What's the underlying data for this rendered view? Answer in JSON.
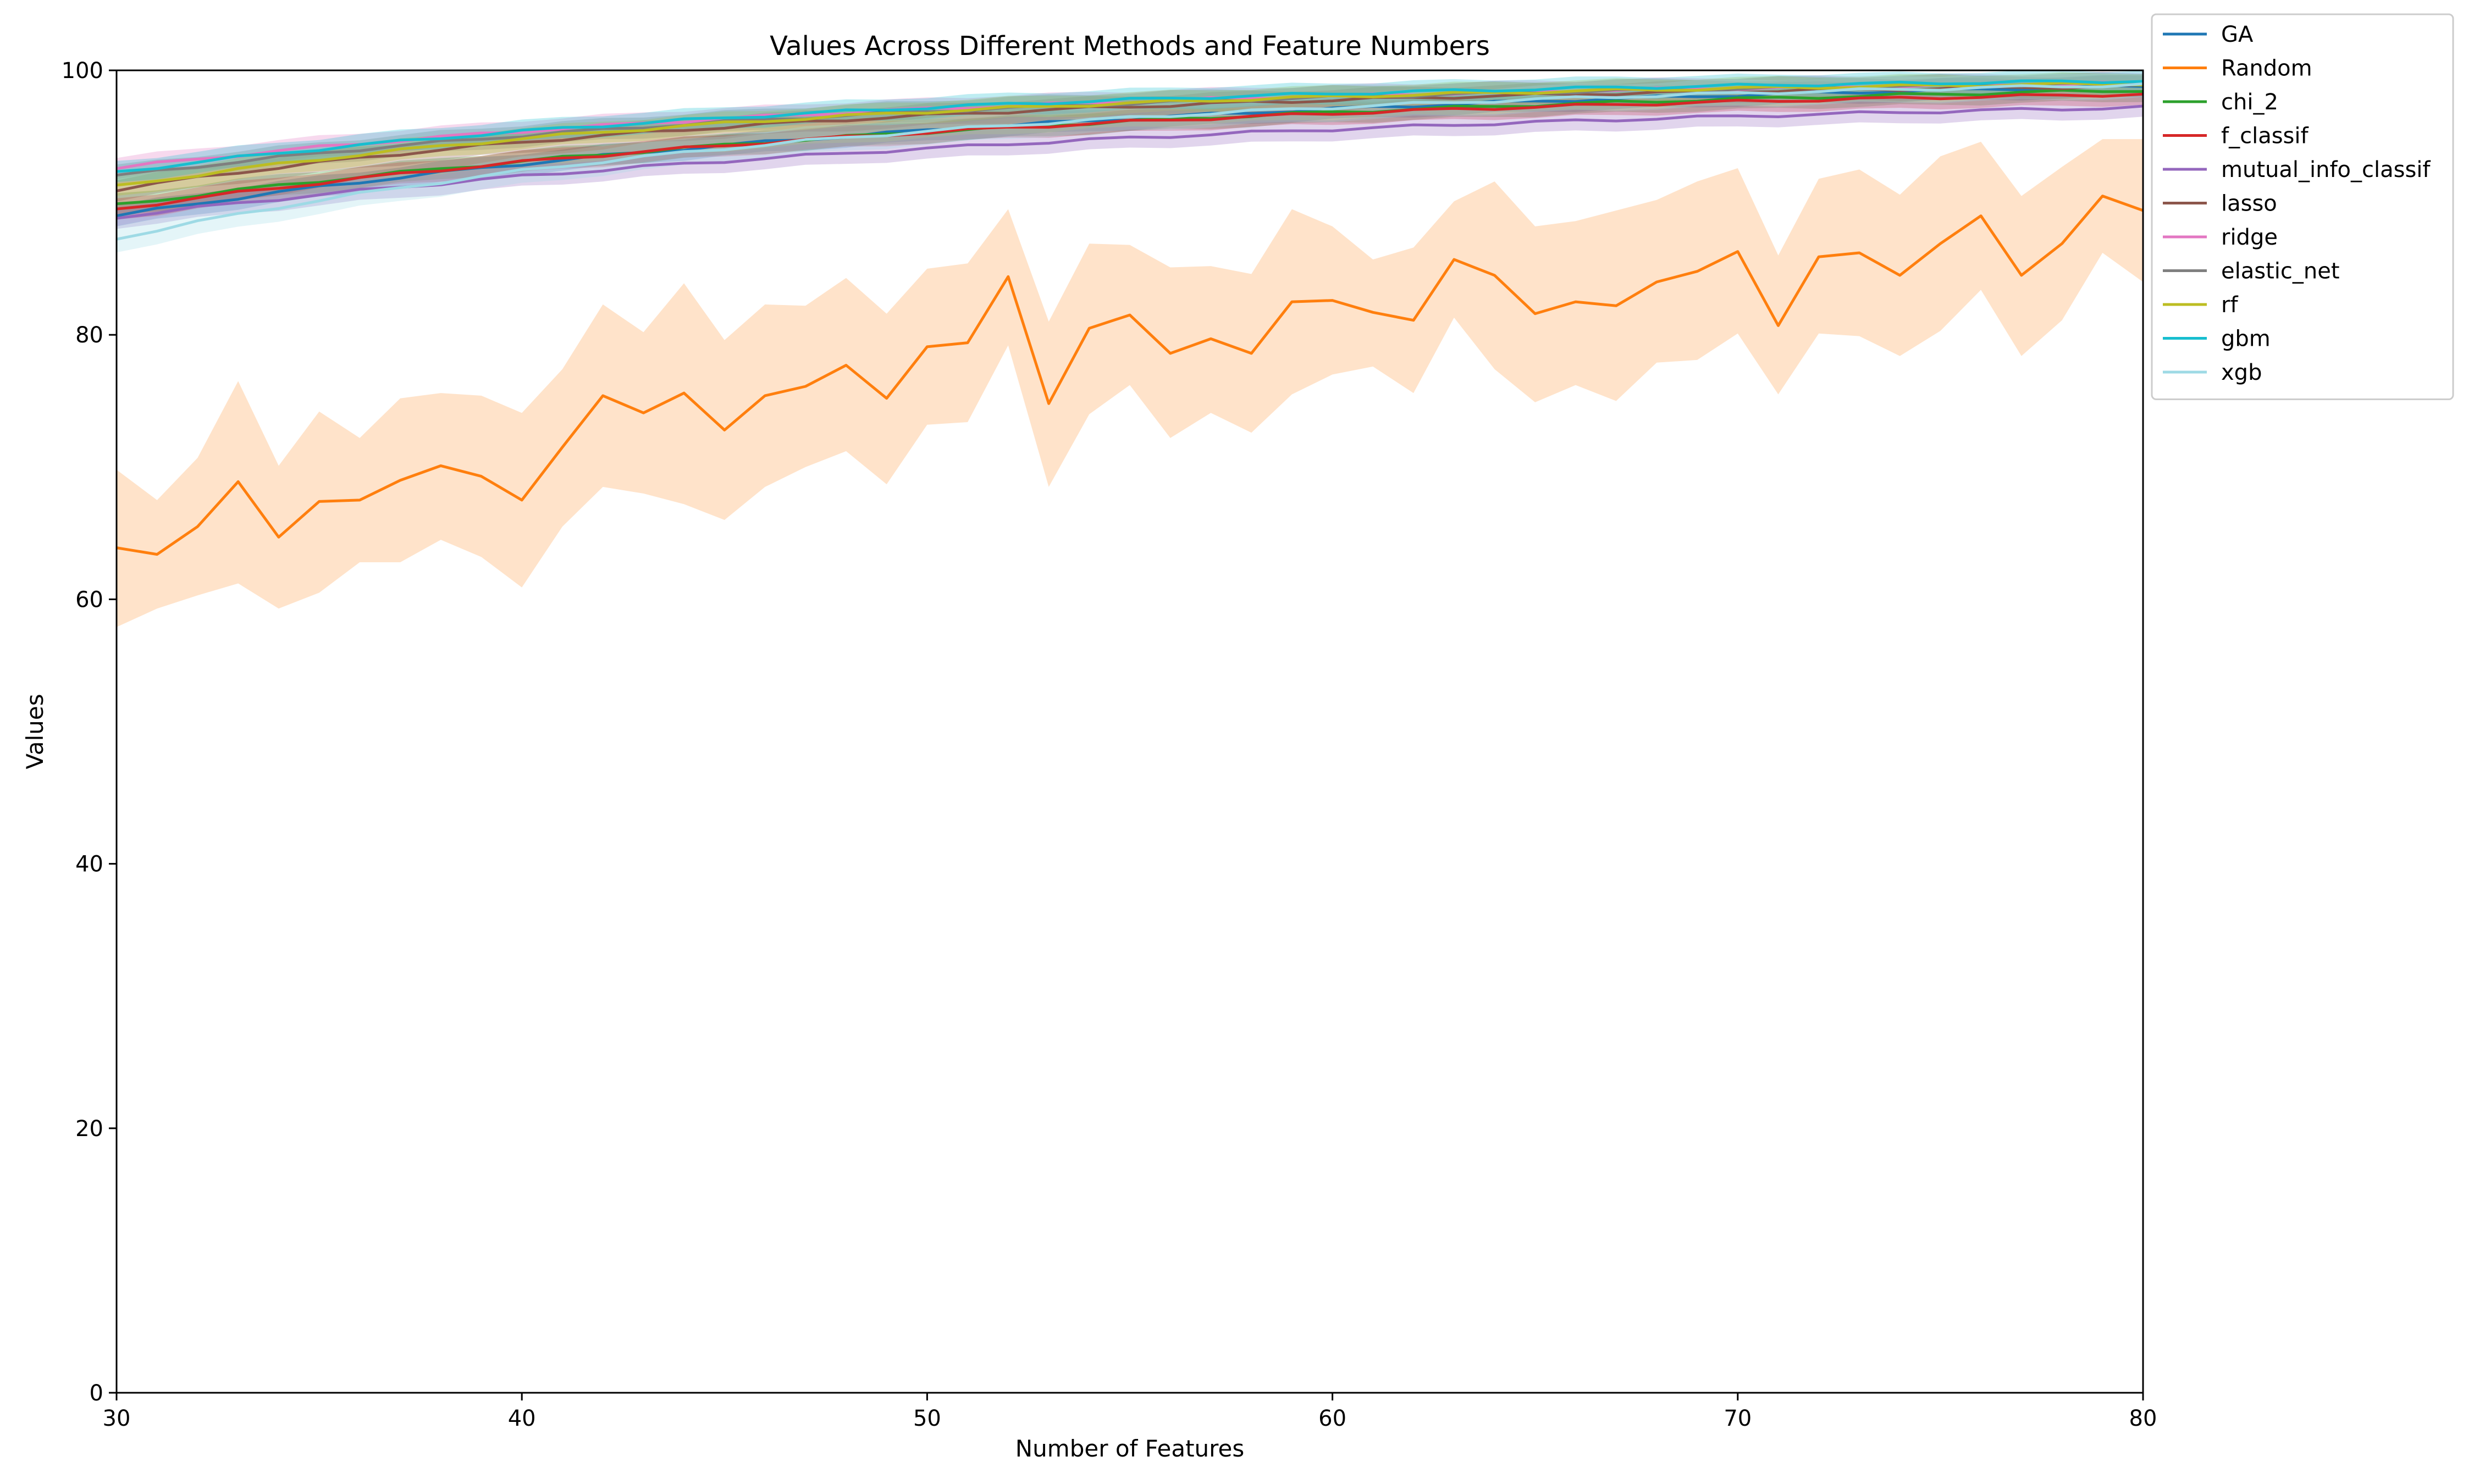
{
  "chart_data": {
    "type": "line",
    "title": "Values Across Different Methods and Feature Numbers",
    "xlabel": "Number of Features",
    "ylabel": "Values",
    "xlim": [
      30,
      80
    ],
    "ylim": [
      0,
      100
    ],
    "xticks": [
      "30",
      "40",
      "50",
      "60",
      "70",
      "80"
    ],
    "yticks": [
      "0",
      "20",
      "40",
      "60",
      "80",
      "100"
    ],
    "grid": false,
    "legend_placement": "outside-top-right",
    "x": [
      30,
      31,
      32,
      33,
      34,
      35,
      36,
      37,
      38,
      39,
      40,
      41,
      42,
      43,
      44,
      45,
      46,
      47,
      48,
      49,
      50,
      51,
      52,
      53,
      54,
      55,
      56,
      57,
      58,
      59,
      60,
      61,
      62,
      63,
      64,
      65,
      66,
      67,
      68,
      69,
      70,
      71,
      72,
      73,
      74,
      75,
      76,
      77,
      78,
      79,
      80
    ],
    "series": [
      {
        "name": "GA",
        "color": "#1f77b4",
        "band": 0.8,
        "start": 89.0,
        "end": 98.8,
        "k": 2.2
      },
      {
        "name": "Random",
        "color": "#ff7f0e",
        "band": 0,
        "values": [
          63.9,
          63.4,
          65.5,
          68.9,
          64.7,
          67.4,
          67.5,
          69.0,
          70.1,
          69.3,
          67.5,
          71.5,
          75.4,
          74.1,
          75.6,
          72.8,
          75.4,
          76.1,
          77.7,
          75.2,
          79.1,
          79.4,
          84.4,
          74.8,
          80.5,
          81.5,
          78.6,
          79.7,
          78.6,
          82.5,
          82.6,
          81.7,
          81.1,
          85.7,
          84.5,
          81.6,
          82.5,
          82.2,
          84.0,
          84.8,
          86.3,
          80.7,
          85.9,
          86.2,
          84.5,
          86.9,
          89.0,
          84.5,
          86.9,
          90.5,
          89.4
        ],
        "upper": [
          69.8,
          67.5,
          70.7,
          76.5,
          70.1,
          74.2,
          72.2,
          75.2,
          75.6,
          75.4,
          74.1,
          77.4,
          82.3,
          80.2,
          83.9,
          79.6,
          82.3,
          82.2,
          84.3,
          81.6,
          85.0,
          85.4,
          89.5,
          81.0,
          86.9,
          86.8,
          85.1,
          85.2,
          84.6,
          89.5,
          88.2,
          85.7,
          86.6,
          90.1,
          91.6,
          88.2,
          88.6,
          89.4,
          90.2,
          91.6,
          92.6,
          86.0,
          91.8,
          92.5,
          90.6,
          93.5,
          94.6,
          90.5,
          92.7,
          94.8,
          94.8
        ],
        "lower": [
          57.9,
          59.3,
          60.3,
          61.2,
          59.3,
          60.5,
          62.8,
          62.8,
          64.5,
          63.2,
          60.9,
          65.5,
          68.5,
          68.0,
          67.2,
          66.0,
          68.5,
          70.0,
          71.2,
          68.7,
          73.2,
          73.4,
          79.2,
          68.5,
          74.0,
          76.2,
          72.2,
          74.1,
          72.6,
          75.5,
          77.0,
          77.6,
          75.6,
          81.3,
          77.4,
          74.9,
          76.2,
          75.0,
          77.9,
          78.1,
          80.1,
          75.5,
          80.1,
          79.9,
          78.4,
          80.3,
          83.4,
          78.4,
          81.1,
          86.2,
          84.0
        ]
      },
      {
        "name": "chi_2",
        "color": "#2ca02c",
        "band": 0.8,
        "start": 89.8,
        "end": 98.5,
        "k": 2.0
      },
      {
        "name": "f_classif",
        "color": "#d62728",
        "band": 0.8,
        "start": 89.5,
        "end": 98.2,
        "k": 2.3
      },
      {
        "name": "mutual_info_classif",
        "color": "#9467bd",
        "band": 0.8,
        "start": 88.9,
        "end": 97.2,
        "k": 1.9
      },
      {
        "name": "lasso",
        "color": "#8c564b",
        "band": 0.8,
        "start": 91.0,
        "end": 98.8,
        "k": 2.8
      },
      {
        "name": "ridge",
        "color": "#e377c2",
        "band": 0.8,
        "start": 92.6,
        "end": 99.0,
        "k": 2.6
      },
      {
        "name": "elastic_net",
        "color": "#7f7f7f",
        "band": 0.8,
        "start": 92.0,
        "end": 99.0,
        "k": 2.6
      },
      {
        "name": "rf",
        "color": "#bcbd22",
        "band": 0.8,
        "start": 91.2,
        "end": 99.0,
        "k": 2.9
      },
      {
        "name": "gbm",
        "color": "#17becf",
        "band": 0.8,
        "start": 92.3,
        "end": 99.2,
        "k": 2.7
      },
      {
        "name": "xgb",
        "color": "#9edae5",
        "band": 1.0,
        "start": 87.3,
        "end": 98.9,
        "k": 2.6
      }
    ]
  }
}
